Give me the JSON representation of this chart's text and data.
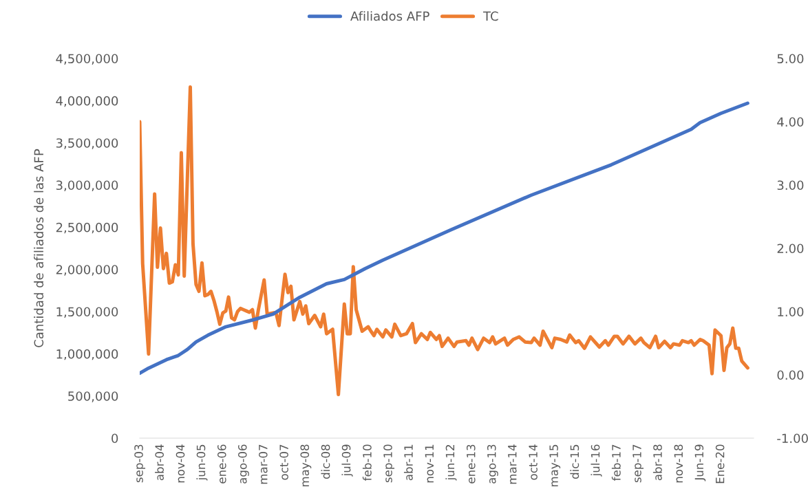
{
  "chart_data": {
    "type": "line",
    "ylabel": "Cantidad de afiliados de las AFP",
    "legend": "top",
    "grid": false,
    "marker": "none",
    "line_style": "solid",
    "xlim": [
      "2003-09",
      "2020-12"
    ],
    "xticks": [
      {
        "value": "2003-09",
        "label": "sep-03"
      },
      {
        "value": "2004-04",
        "label": "abr-04"
      },
      {
        "value": "2004-11",
        "label": "nov-04"
      },
      {
        "value": "2005-06",
        "label": "jun-05"
      },
      {
        "value": "2006-01",
        "label": "ene-06"
      },
      {
        "value": "2006-08",
        "label": "ago-06"
      },
      {
        "value": "2007-03",
        "label": "mar-07"
      },
      {
        "value": "2007-10",
        "label": "oct-07"
      },
      {
        "value": "2008-05",
        "label": "may-08"
      },
      {
        "value": "2008-12",
        "label": "dic-08"
      },
      {
        "value": "2009-07",
        "label": "jul-09"
      },
      {
        "value": "2010-02",
        "label": "feb-10"
      },
      {
        "value": "2010-09",
        "label": "sep-10"
      },
      {
        "value": "2011-04",
        "label": "abr-11"
      },
      {
        "value": "2011-11",
        "label": "nov-11"
      },
      {
        "value": "2012-06",
        "label": "jun-12"
      },
      {
        "value": "2013-01",
        "label": "ene-13"
      },
      {
        "value": "2013-08",
        "label": "ago-13"
      },
      {
        "value": "2014-03",
        "label": "mar-14"
      },
      {
        "value": "2014-10",
        "label": "oct-14"
      },
      {
        "value": "2015-05",
        "label": "may-15"
      },
      {
        "value": "2015-12",
        "label": "dic-15"
      },
      {
        "value": "2016-07",
        "label": "jul-16"
      },
      {
        "value": "2017-02",
        "label": "feb-17"
      },
      {
        "value": "2017-09",
        "label": "sep-17"
      },
      {
        "value": "2018-04",
        "label": "abr-18"
      },
      {
        "value": "2018-11",
        "label": "nov-18"
      },
      {
        "value": "2019-06",
        "label": "Jun-19"
      },
      {
        "value": "2020-01",
        "label": "Ene-20"
      }
    ],
    "ylim": [
      0,
      4500000
    ],
    "yticks": [
      0,
      {
        "value": 500000,
        "label": "500,000"
      },
      {
        "value": 1000000,
        "label": "1,000,000"
      },
      {
        "value": 1500000,
        "label": "1,500,000"
      },
      {
        "value": 2000000,
        "label": "2,000,000"
      },
      {
        "value": 2500000,
        "label": "2,500,000"
      },
      {
        "value": 3000000,
        "label": "3,000,000"
      },
      {
        "value": 3500000,
        "label": "3,500,000"
      },
      {
        "value": 4000000,
        "label": "4,000,000"
      },
      {
        "value": 4500000,
        "label": "4,500,000"
      }
    ],
    "y2lim": [
      -1,
      5
    ],
    "y2ticks": [
      {
        "value": -1,
        "label": "-1.00"
      },
      {
        "value": 0,
        "label": "0.00"
      },
      {
        "value": 1,
        "label": "1.00"
      },
      {
        "value": 2,
        "label": "2.00"
      },
      {
        "value": 3,
        "label": "3.00"
      },
      {
        "value": 4,
        "label": "4.00"
      },
      {
        "value": 5,
        "label": "5.00"
      }
    ],
    "series": [
      {
        "name": "Afiliados AFP",
        "color": "#4472c4",
        "x": [
          "2003-09",
          "2003-12",
          "2004-06",
          "2004-10",
          "2005-01",
          "2005-04",
          "2005-08",
          "2006-02",
          "2006-11",
          "2007-06",
          "2008-03",
          "2008-12",
          "2009-06",
          "2010-01",
          "2010-07",
          "2012-06",
          "2014-09",
          "2016-12",
          "2019-03",
          "2019-06",
          "2020-01",
          "2020-10"
        ],
        "values": [
          770000,
          830000,
          930000,
          980000,
          1050000,
          1140000,
          1220000,
          1320000,
          1400000,
          1470000,
          1670000,
          1830000,
          1880000,
          2010000,
          2110000,
          2470000,
          2880000,
          3240000,
          3660000,
          3740000,
          3850000,
          3970000
        ]
      },
      {
        "name": "TC",
        "color": "#ed7d31",
        "axis": "y2",
        "x": [
          "2003-09",
          "2003-10",
          "2003-12",
          "2004-02",
          "2004-03",
          "2004-04",
          "2004-05",
          "2004-06",
          "2004-07",
          "2004-08",
          "2004-09",
          "2004-10",
          "2004-11",
          "2004-12",
          "2005-02",
          "2005-03",
          "2005-04",
          "2005-05",
          "2005-06",
          "2005-07",
          "2005-08",
          "2005-09",
          "2005-10",
          "2005-11",
          "2005-12",
          "2006-01",
          "2006-02",
          "2006-03",
          "2006-04",
          "2006-05",
          "2006-06",
          "2006-07",
          "2006-08",
          "2006-09",
          "2006-10",
          "2006-11",
          "2006-12",
          "2007-01",
          "2007-03",
          "2007-04",
          "2007-06",
          "2007-07",
          "2007-08",
          "2007-10",
          "2007-11",
          "2007-12",
          "2008-01",
          "2008-03",
          "2008-04",
          "2008-05",
          "2008-06",
          "2008-08",
          "2008-10",
          "2008-11",
          "2008-12",
          "2009-02",
          "2009-04",
          "2009-06",
          "2009-07",
          "2009-08",
          "2009-09",
          "2009-10",
          "2009-12",
          "2010-02",
          "2010-03",
          "2010-04",
          "2010-05",
          "2010-07",
          "2010-08",
          "2010-10",
          "2010-11",
          "2011-01",
          "2011-03",
          "2011-05",
          "2011-06",
          "2011-08",
          "2011-10",
          "2011-11",
          "2012-01",
          "2012-02",
          "2012-03",
          "2012-05",
          "2012-07",
          "2012-08",
          "2012-11",
          "2012-12",
          "2013-01",
          "2013-03",
          "2013-05",
          "2013-07",
          "2013-08",
          "2013-09",
          "2013-12",
          "2014-01",
          "2014-03",
          "2014-05",
          "2014-07",
          "2014-09",
          "2014-10",
          "2014-12",
          "2015-01",
          "2015-04",
          "2015-05",
          "2015-07",
          "2015-09",
          "2015-10",
          "2015-12",
          "2016-01",
          "2016-03",
          "2016-05",
          "2016-08",
          "2016-10",
          "2016-11",
          "2017-01",
          "2017-02",
          "2017-04",
          "2017-06",
          "2017-08",
          "2017-10",
          "2017-11",
          "2018-01",
          "2018-03",
          "2018-04",
          "2018-06",
          "2018-08",
          "2018-09",
          "2018-11",
          "2018-12",
          "2019-02",
          "2019-03",
          "2019-04",
          "2019-06",
          "2019-07",
          "2019-09",
          "2019-10",
          "2019-11",
          "2020-01",
          "2020-02",
          "2020-03",
          "2020-04",
          "2020-05",
          "2020-06",
          "2020-07",
          "2020-08",
          "2020-10"
        ],
        "values": [
          4.0,
          1.76,
          0.33,
          2.86,
          1.7,
          2.32,
          1.68,
          1.92,
          1.45,
          1.47,
          1.74,
          1.58,
          3.51,
          1.56,
          4.55,
          2.07,
          1.43,
          1.32,
          1.77,
          1.25,
          1.27,
          1.32,
          1.18,
          1.0,
          0.8,
          0.98,
          1.01,
          1.23,
          0.9,
          0.87,
          1.0,
          1.05,
          1.03,
          1.01,
          0.99,
          1.03,
          0.74,
          1.03,
          1.5,
          0.96,
          0.98,
          0.98,
          0.78,
          1.59,
          1.3,
          1.4,
          0.87,
          1.16,
          0.96,
          1.09,
          0.81,
          0.94,
          0.76,
          0.96,
          0.65,
          0.72,
          -0.31,
          1.12,
          0.65,
          0.65,
          1.71,
          1.03,
          0.69,
          0.76,
          0.69,
          0.62,
          0.72,
          0.6,
          0.71,
          0.6,
          0.8,
          0.62,
          0.65,
          0.81,
          0.51,
          0.65,
          0.56,
          0.67,
          0.56,
          0.62,
          0.45,
          0.58,
          0.45,
          0.52,
          0.54,
          0.47,
          0.58,
          0.4,
          0.58,
          0.51,
          0.6,
          0.49,
          0.58,
          0.47,
          0.56,
          0.6,
          0.52,
          0.51,
          0.58,
          0.47,
          0.69,
          0.43,
          0.58,
          0.56,
          0.52,
          0.63,
          0.51,
          0.54,
          0.42,
          0.6,
          0.44,
          0.54,
          0.47,
          0.61,
          0.61,
          0.49,
          0.61,
          0.49,
          0.58,
          0.51,
          0.43,
          0.61,
          0.43,
          0.53,
          0.43,
          0.49,
          0.47,
          0.54,
          0.51,
          0.54,
          0.47,
          0.56,
          0.54,
          0.47,
          0.02,
          0.71,
          0.62,
          0.07,
          0.43,
          0.49,
          0.74,
          0.42,
          0.42,
          0.22,
          0.11
        ]
      }
    ]
  }
}
